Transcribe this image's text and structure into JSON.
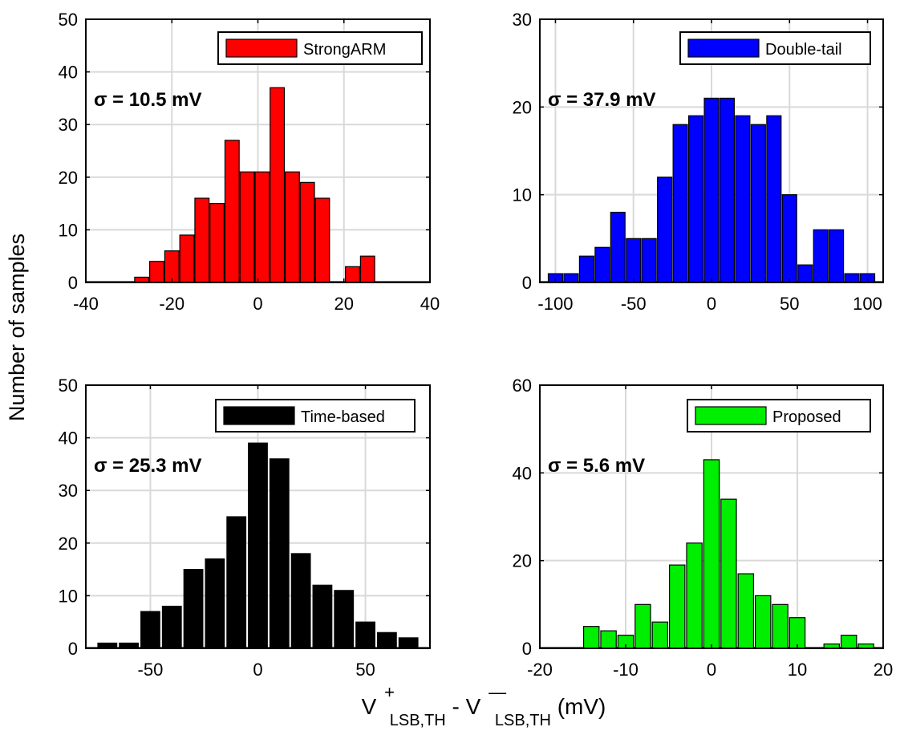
{
  "figure": {
    "ylabel": "Number of samples",
    "xlabel": {
      "main1": "V",
      "sup1": "+",
      "sub1": "LSB,TH",
      "mid": " - V",
      "sup2": "—",
      "sub2": "LSB,TH",
      "unit": " (mV)"
    }
  },
  "chart_data": [
    {
      "type": "bar",
      "legend": "StrongARM",
      "annotation": "σ = 10.5 mV",
      "color": "#ff0000",
      "xlim": [
        -40,
        40
      ],
      "ylim": [
        0,
        50
      ],
      "xticks": [
        -40,
        -20,
        0,
        20,
        40
      ],
      "yticks": [
        0,
        10,
        20,
        30,
        40,
        50
      ],
      "bin_width": 3.3,
      "x": [
        -27,
        -23.5,
        -20,
        -16.5,
        -13,
        -9.5,
        -6,
        -2.5,
        1,
        4.5,
        8,
        11.5,
        15,
        18.5,
        22,
        25.5
      ],
      "values": [
        1,
        4,
        6,
        9,
        16,
        15,
        27,
        21,
        21,
        37,
        21,
        19,
        16,
        0,
        3,
        5
      ],
      "grid": true,
      "legend_position": "top-right"
    },
    {
      "type": "bar",
      "legend": "Double-tail",
      "annotation": "σ = 37.9 mV",
      "color": "#0000ff",
      "xlim": [
        -110,
        110
      ],
      "ylim": [
        0,
        30
      ],
      "xticks": [
        -100,
        -50,
        0,
        50,
        100
      ],
      "yticks": [
        0,
        10,
        20,
        30
      ],
      "bin_width": 9.2,
      "x": [
        -100,
        -90,
        -80,
        -70,
        -60,
        -50,
        -40,
        -30,
        -20,
        -10,
        0,
        10,
        20,
        30,
        40,
        50,
        60,
        70,
        80,
        90,
        100
      ],
      "values": [
        1,
        1,
        3,
        4,
        8,
        5,
        5,
        12,
        18,
        19,
        21,
        21,
        19,
        18,
        19,
        10,
        2,
        6,
        6,
        1,
        1
      ],
      "grid": true,
      "legend_position": "top-right"
    },
    {
      "type": "bar",
      "legend": "Time-based",
      "annotation": "σ = 25.3 mV",
      "color": "#000000",
      "xlim": [
        -80,
        80
      ],
      "ylim": [
        0,
        50
      ],
      "xticks": [
        -50,
        0,
        50
      ],
      "yticks": [
        0,
        10,
        20,
        30,
        40,
        50
      ],
      "bin_width": 8.8,
      "x": [
        -70,
        -60,
        -50,
        -40,
        -30,
        -20,
        -10,
        0,
        10,
        20,
        30,
        40,
        50,
        60,
        70
      ],
      "values": [
        1,
        1,
        7,
        8,
        15,
        17,
        25,
        39,
        36,
        18,
        12,
        11,
        5,
        3,
        2
      ],
      "grid": true,
      "legend_position": "top-right"
    },
    {
      "type": "bar",
      "legend": "Proposed",
      "annotation": "σ = 5.6 mV",
      "color": "#00ee00",
      "xlim": [
        -20,
        20
      ],
      "ylim": [
        0,
        60
      ],
      "xticks": [
        -20,
        -10,
        0,
        10,
        20
      ],
      "yticks": [
        0,
        20,
        40,
        60
      ],
      "bin_width": 1.8,
      "x": [
        -14,
        -12,
        -10,
        -8,
        -6,
        -4,
        -2,
        0,
        2,
        4,
        6,
        8,
        10,
        12,
        14,
        16,
        18
      ],
      "values": [
        5,
        4,
        3,
        10,
        6,
        19,
        24,
        43,
        34,
        17,
        12,
        10,
        7,
        0,
        1,
        3,
        1
      ],
      "grid": true,
      "legend_position": "top-right"
    }
  ]
}
